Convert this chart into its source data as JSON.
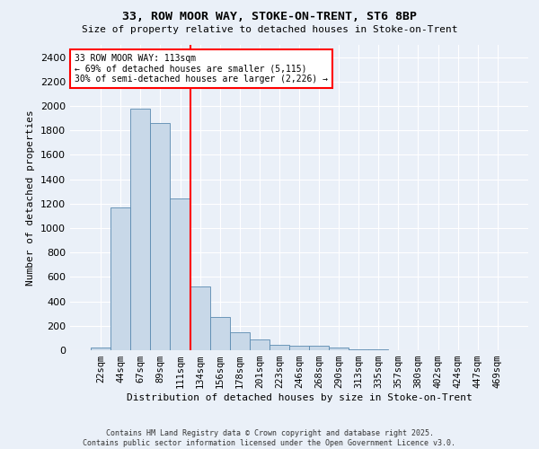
{
  "title_line1": "33, ROW MOOR WAY, STOKE-ON-TRENT, ST6 8BP",
  "title_line2": "Size of property relative to detached houses in Stoke-on-Trent",
  "xlabel": "Distribution of detached houses by size in Stoke-on-Trent",
  "ylabel": "Number of detached properties",
  "bar_labels": [
    "22sqm",
    "44sqm",
    "67sqm",
    "89sqm",
    "111sqm",
    "134sqm",
    "156sqm",
    "178sqm",
    "201sqm",
    "223sqm",
    "246sqm",
    "268sqm",
    "290sqm",
    "313sqm",
    "335sqm",
    "357sqm",
    "380sqm",
    "402sqm",
    "424sqm",
    "447sqm",
    "469sqm"
  ],
  "bar_values": [
    25,
    1170,
    1980,
    1860,
    1240,
    520,
    275,
    150,
    90,
    45,
    40,
    35,
    20,
    10,
    5,
    3,
    3,
    2,
    2,
    2,
    2
  ],
  "bar_color": "#c8d8e8",
  "bar_edge_color": "#5a8ab0",
  "vline_x": 4.5,
  "vline_color": "red",
  "annotation_text": "33 ROW MOOR WAY: 113sqm\n← 69% of detached houses are smaller (5,115)\n30% of semi-detached houses are larger (2,226) →",
  "annotation_box_color": "white",
  "annotation_box_edge": "red",
  "ylim": [
    0,
    2500
  ],
  "yticks": [
    0,
    200,
    400,
    600,
    800,
    1000,
    1200,
    1400,
    1600,
    1800,
    2000,
    2200,
    2400
  ],
  "background_color": "#eaf0f8",
  "grid_color": "white",
  "footer_line1": "Contains HM Land Registry data © Crown copyright and database right 2025.",
  "footer_line2": "Contains public sector information licensed under the Open Government Licence v3.0."
}
